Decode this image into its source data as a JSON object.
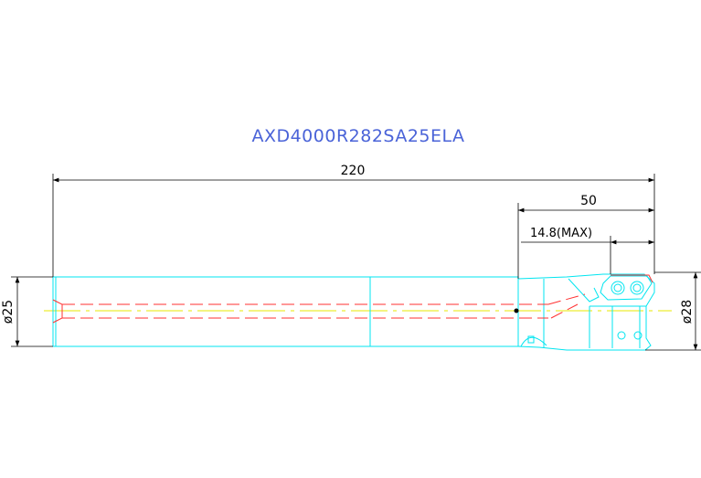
{
  "drawing": {
    "title": "AXD4000R282SA25ELA",
    "dimensions": {
      "overall_length": "220",
      "head_length": "50",
      "max_depth": "14.8(MAX)",
      "shank_diameter": "ø25",
      "cutting_diameter": "ø28"
    },
    "colors": {
      "title": "#4a63d8",
      "outline": "#00e5f0",
      "dimension": "#000000",
      "hidden_coolant": "#ff3030",
      "centerline": "#e8e800"
    }
  }
}
